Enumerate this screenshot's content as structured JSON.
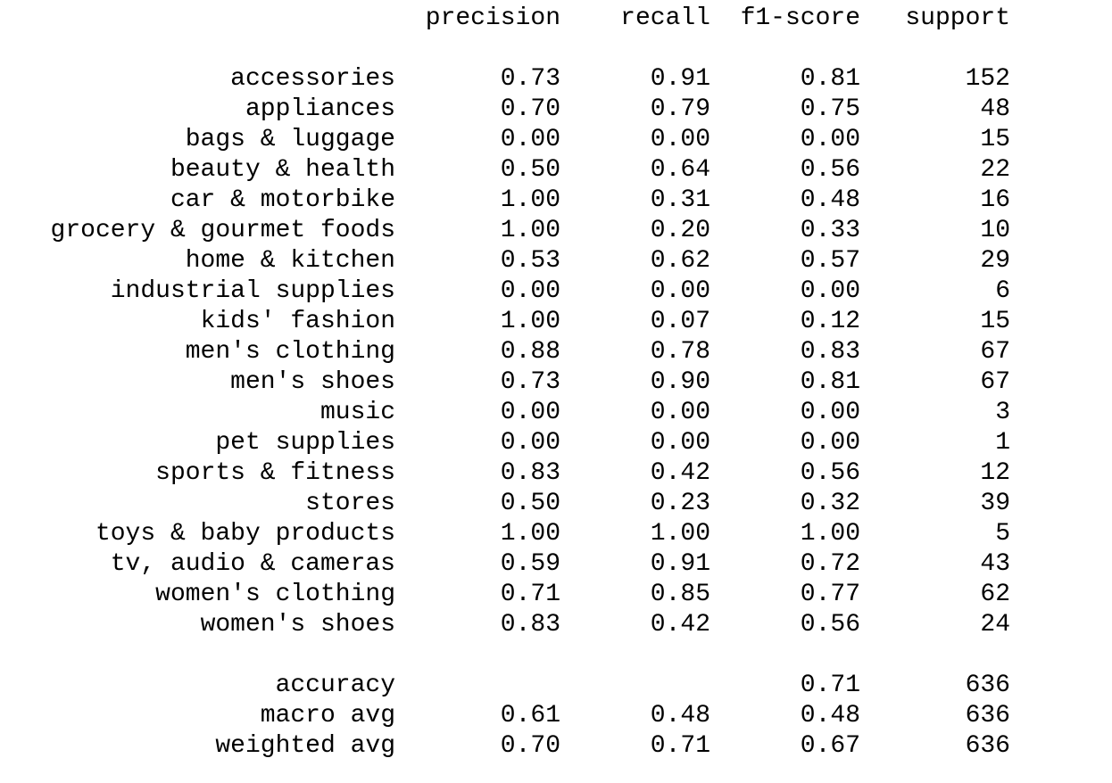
{
  "header": {
    "precision": "precision",
    "recall": "recall",
    "f1": "f1-score",
    "support": "support"
  },
  "rows": [
    {
      "label": "accessories",
      "precision": "0.73",
      "recall": "0.91",
      "f1": "0.81",
      "support": "152"
    },
    {
      "label": "appliances",
      "precision": "0.70",
      "recall": "0.79",
      "f1": "0.75",
      "support": "48"
    },
    {
      "label": "bags & luggage",
      "precision": "0.00",
      "recall": "0.00",
      "f1": "0.00",
      "support": "15"
    },
    {
      "label": "beauty & health",
      "precision": "0.50",
      "recall": "0.64",
      "f1": "0.56",
      "support": "22"
    },
    {
      "label": "car & motorbike",
      "precision": "1.00",
      "recall": "0.31",
      "f1": "0.48",
      "support": "16"
    },
    {
      "label": "grocery & gourmet foods",
      "precision": "1.00",
      "recall": "0.20",
      "f1": "0.33",
      "support": "10"
    },
    {
      "label": "home & kitchen",
      "precision": "0.53",
      "recall": "0.62",
      "f1": "0.57",
      "support": "29"
    },
    {
      "label": "industrial supplies",
      "precision": "0.00",
      "recall": "0.00",
      "f1": "0.00",
      "support": "6"
    },
    {
      "label": "kids' fashion",
      "precision": "1.00",
      "recall": "0.07",
      "f1": "0.12",
      "support": "15"
    },
    {
      "label": "men's clothing",
      "precision": "0.88",
      "recall": "0.78",
      "f1": "0.83",
      "support": "67"
    },
    {
      "label": "men's shoes",
      "precision": "0.73",
      "recall": "0.90",
      "f1": "0.81",
      "support": "67"
    },
    {
      "label": "music",
      "precision": "0.00",
      "recall": "0.00",
      "f1": "0.00",
      "support": "3"
    },
    {
      "label": "pet supplies",
      "precision": "0.00",
      "recall": "0.00",
      "f1": "0.00",
      "support": "1"
    },
    {
      "label": "sports & fitness",
      "precision": "0.83",
      "recall": "0.42",
      "f1": "0.56",
      "support": "12"
    },
    {
      "label": "stores",
      "precision": "0.50",
      "recall": "0.23",
      "f1": "0.32",
      "support": "39"
    },
    {
      "label": "toys & baby products",
      "precision": "1.00",
      "recall": "1.00",
      "f1": "1.00",
      "support": "5"
    },
    {
      "label": "tv, audio & cameras",
      "precision": "0.59",
      "recall": "0.91",
      "f1": "0.72",
      "support": "43"
    },
    {
      "label": "women's clothing",
      "precision": "0.71",
      "recall": "0.85",
      "f1": "0.77",
      "support": "62"
    },
    {
      "label": "women's shoes",
      "precision": "0.83",
      "recall": "0.42",
      "f1": "0.56",
      "support": "24"
    }
  ],
  "summary": [
    {
      "label": "accuracy",
      "precision": "",
      "recall": "",
      "f1": "0.71",
      "support": "636"
    },
    {
      "label": "macro avg",
      "precision": "0.61",
      "recall": "0.48",
      "f1": "0.48",
      "support": "636"
    },
    {
      "label": "weighted avg",
      "precision": "0.70",
      "recall": "0.71",
      "f1": "0.67",
      "support": "636"
    }
  ]
}
